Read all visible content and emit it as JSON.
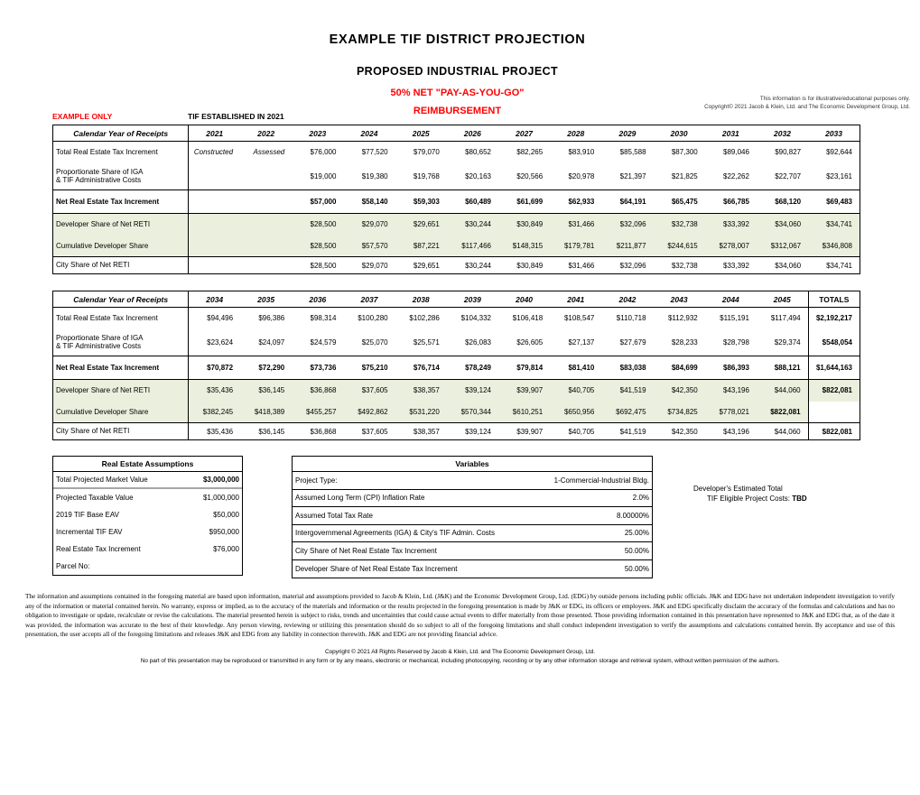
{
  "header": {
    "title": "EXAMPLE TIF DISTRICT PROJECTION",
    "subtitle": "PROPOSED INDUSTRIAL PROJECT",
    "reimbursement_line1": "50% NET \"PAY-AS-YOU-GO\"",
    "reimbursement_line2": "REIMBURSEMENT",
    "example_only": "EXAMPLE ONLY",
    "tif_established": "TIF ESTABLISHED IN 2021",
    "note_line1": "This information is for illustrative/educational purposes only.",
    "note_line2": "Copyright© 2021 Jacob & Klein, Ltd. and The Economic Development Group, Ltd."
  },
  "colors": {
    "accent_red": "#FF0000",
    "row_green": "#EBF0DE"
  },
  "projection_tables": [
    {
      "corner_label": "Calendar Year of Receipts",
      "columns": [
        "2021",
        "2022",
        "2023",
        "2024",
        "2025",
        "2026",
        "2027",
        "2028",
        "2029",
        "2030",
        "2031",
        "2032",
        "2033"
      ],
      "has_totals_col": false,
      "rows": [
        {
          "name": "total-reti",
          "label": "Total Real Estate Tax Increment",
          "italic_value_indices": [
            0,
            1
          ],
          "values": [
            "Constructed",
            "Assessed",
            "$76,000",
            "$77,520",
            "$79,070",
            "$80,652",
            "$82,265",
            "$83,910",
            "$85,588",
            "$87,300",
            "$89,046",
            "$90,827",
            "$92,644"
          ]
        },
        {
          "name": "iga-costs",
          "label": "Proportionate Share of IGA\n& TIF Administrative Costs",
          "values": [
            "",
            "",
            "$19,000",
            "$19,380",
            "$19,768",
            "$20,163",
            "$20,566",
            "$20,978",
            "$21,397",
            "$21,825",
            "$22,262",
            "$22,707",
            "$23,161"
          ]
        },
        {
          "name": "net-reti",
          "label": "Net Real Estate Tax Increment",
          "bold": true,
          "values": [
            "",
            "",
            "$57,000",
            "$58,140",
            "$59,303",
            "$60,489",
            "$61,699",
            "$62,933",
            "$64,191",
            "$65,475",
            "$66,785",
            "$68,120",
            "$69,483"
          ]
        },
        {
          "name": "dev-share",
          "label": "Developer Share of Net RETI",
          "green": true,
          "values": [
            "",
            "",
            "$28,500",
            "$29,070",
            "$29,651",
            "$30,244",
            "$30,849",
            "$31,466",
            "$32,096",
            "$32,738",
            "$33,392",
            "$34,060",
            "$34,741"
          ]
        },
        {
          "name": "cum-dev-share",
          "label": "Cumulative Developer Share",
          "green": true,
          "values": [
            "",
            "",
            "$28,500",
            "$57,570",
            "$87,221",
            "$117,466",
            "$148,315",
            "$179,781",
            "$211,877",
            "$244,615",
            "$278,007",
            "$312,067",
            "$346,808"
          ]
        },
        {
          "name": "city-share",
          "label": "City Share of Net RETI",
          "values": [
            "",
            "",
            "$28,500",
            "$29,070",
            "$29,651",
            "$30,244",
            "$30,849",
            "$31,466",
            "$32,096",
            "$32,738",
            "$33,392",
            "$34,060",
            "$34,741"
          ]
        }
      ]
    },
    {
      "corner_label": "Calendar Year of Receipts",
      "columns": [
        "2034",
        "2035",
        "2036",
        "2037",
        "2038",
        "2039",
        "2040",
        "2041",
        "2042",
        "2043",
        "2044",
        "2045",
        "TOTALS"
      ],
      "has_totals_col": true,
      "rows": [
        {
          "name": "total-reti",
          "label": "Total Real Estate Tax Increment",
          "values": [
            "$94,496",
            "$96,386",
            "$98,314",
            "$100,280",
            "$102,286",
            "$104,332",
            "$106,418",
            "$108,547",
            "$110,718",
            "$112,932",
            "$115,191",
            "$117,494",
            "$2,192,217"
          ]
        },
        {
          "name": "iga-costs",
          "label": "Proportionate Share of IGA\n& TIF Administrative Costs",
          "values": [
            "$23,624",
            "$24,097",
            "$24,579",
            "$25,070",
            "$25,571",
            "$26,083",
            "$26,605",
            "$27,137",
            "$27,679",
            "$28,233",
            "$28,798",
            "$29,374",
            "$548,054"
          ]
        },
        {
          "name": "net-reti",
          "label": "Net Real Estate Tax Increment",
          "bold": true,
          "values": [
            "$70,872",
            "$72,290",
            "$73,736",
            "$75,210",
            "$76,714",
            "$78,249",
            "$79,814",
            "$81,410",
            "$83,038",
            "$84,699",
            "$86,393",
            "$88,121",
            "$1,644,163"
          ]
        },
        {
          "name": "dev-share",
          "label": "Developer Share of Net RETI",
          "green": true,
          "values": [
            "$35,436",
            "$36,145",
            "$36,868",
            "$37,605",
            "$38,357",
            "$39,124",
            "$39,907",
            "$40,705",
            "$41,519",
            "$42,350",
            "$43,196",
            "$44,060",
            "$822,081"
          ]
        },
        {
          "name": "cum-dev-share",
          "label": "Cumulative Developer Share",
          "green": true,
          "bold_value_indices": [
            11
          ],
          "white_totals_cell": true,
          "values": [
            "$382,245",
            "$418,389",
            "$455,257",
            "$492,862",
            "$531,220",
            "$570,344",
            "$610,251",
            "$650,956",
            "$692,475",
            "$734,825",
            "$778,021",
            "$822,081",
            ""
          ]
        },
        {
          "name": "city-share",
          "label": "City Share of Net RETI",
          "values": [
            "$35,436",
            "$36,145",
            "$36,868",
            "$37,605",
            "$38,357",
            "$39,124",
            "$39,907",
            "$40,705",
            "$41,519",
            "$42,350",
            "$43,196",
            "$44,060",
            "$822,081"
          ]
        }
      ]
    }
  ],
  "assumptions": {
    "title": "Real Estate Assumptions",
    "rows": [
      {
        "label": "Total Projected Market Value",
        "value": "$3,000,000",
        "bold": true
      },
      {
        "label": "Projected Taxable Value",
        "value": "$1,000,000"
      },
      {
        "label": "2019 TIF Base EAV",
        "value": "$50,000"
      },
      {
        "label": "Incremental TIF EAV",
        "value": "$950,000"
      },
      {
        "label": "Real Estate Tax Increment",
        "value": "$76,000"
      },
      {
        "label": "Parcel No:",
        "value": ""
      }
    ]
  },
  "variables": {
    "title": "Variables",
    "rows": [
      {
        "label": "Project Type:",
        "value": "1-Commercial-Industrial Bldg."
      },
      {
        "label": "Assumed Long Term (CPI) Inflation Rate",
        "value": "2.0%"
      },
      {
        "label": "Assumed Total Tax Rate",
        "value": "8.00000%"
      },
      {
        "label": "Intergovernmenal Agreements (IGA) & City's TIF Admin. Costs",
        "value": "25.00%"
      },
      {
        "label": "City Share of Net Real Estate Tax Increment",
        "value": "50.00%"
      },
      {
        "label": "Developer Share of Net Real Estate Tax Increment",
        "value": "50.00%"
      }
    ]
  },
  "developer_note": {
    "line1": "Developer's Estimated Total",
    "line2_label": "TIF Eligible Project Costs: ",
    "line2_value": "TBD"
  },
  "footer": {
    "disclaimer": "The information and assumptions contained in the foregoing material are based upon information, material and assumptions provided to Jacob & Klein, Ltd. (J&K) and the Economic Development Group, Ltd. (EDG) by outside persons including public officials.  J&K and EDG have not undertaken independent investigation to verify any of the information or material contained herein.  No warranty, express or implied, as to the accuracy of the materials and information or the results projected in the foregoing presentation is made by J&K or EDG, its officers or employees.  J&K and EDG specifically disclaim the accuracy of the formulas and calculations and has no obligation to investigate or update, recalculate or revise the calculations.  The material presented herein is subject to risks, trends and uncertainties that could cause actual events to differ materially from those presented.  Those providing information contained in this presentation have represented to J&K and EDG that, as of the date it was provided, the information was accurate to the best of their knowledge.  Any person viewing, reviewing or utilizing this presentation should do so subject to all of the foregoing limitations and shall conduct independent investigation to verify the assumptions and calculations contained herein.  By acceptance and use of this presentation, the user accepts all of the foregoing limitations and releases J&K and EDG from any liability in connection therewith.  J&K and EDG are not providing financial advice.",
    "copyright": "Copyright © 2021 All Rights Reserved by Jacob & Klein, Ltd. and The Economic Development Group, Ltd.",
    "reproduction_notice": "No part of this presentation may be reproduced or transmitted in any form or by any means, electronic or mechanical, including photocopying, recording or by any other information storage and retrieval system, without written permission of the authors."
  }
}
